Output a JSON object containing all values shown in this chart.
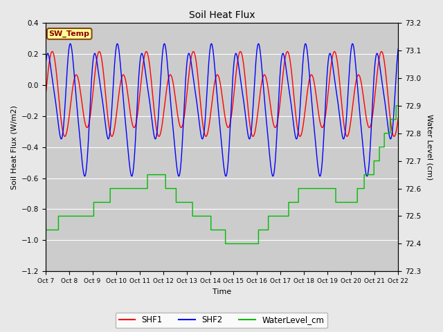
{
  "title": "Soil Heat Flux",
  "xlabel": "Time",
  "ylabel_left": "Soil Heat Flux (W/m2)",
  "ylabel_right": "Water Level (cm)",
  "ylim_left": [
    -1.2,
    0.4
  ],
  "ylim_right": [
    72.3,
    73.2
  ],
  "yticks_left": [
    -1.2,
    -1.0,
    -0.8,
    -0.6,
    -0.4,
    -0.2,
    0.0,
    0.2,
    0.4
  ],
  "yticks_right": [
    72.3,
    72.4,
    72.5,
    72.6,
    72.7,
    72.8,
    72.9,
    73.0,
    73.1,
    73.2
  ],
  "xtick_labels": [
    "Oct 7",
    "Oct 8",
    "Oct 9",
    "Oct 10",
    "Oct 11",
    "Oct 12",
    "Oct 13",
    "Oct 14",
    "Oct 15",
    "Oct 16",
    "Oct 17",
    "Oct 18",
    "Oct 19",
    "Oct 20",
    "Oct 21",
    "Oct 22"
  ],
  "color_shf1": "#FF0000",
  "color_shf2": "#0000FF",
  "color_water": "#00BB00",
  "legend_label_shf1": "SHF1",
  "legend_label_shf2": "SHF2",
  "legend_label_water": "WaterLevel_cm",
  "sw_temp_label": "SW_Temp",
  "bg_color": "#E8E8E8",
  "plot_bg_color": "#CCCCCC"
}
